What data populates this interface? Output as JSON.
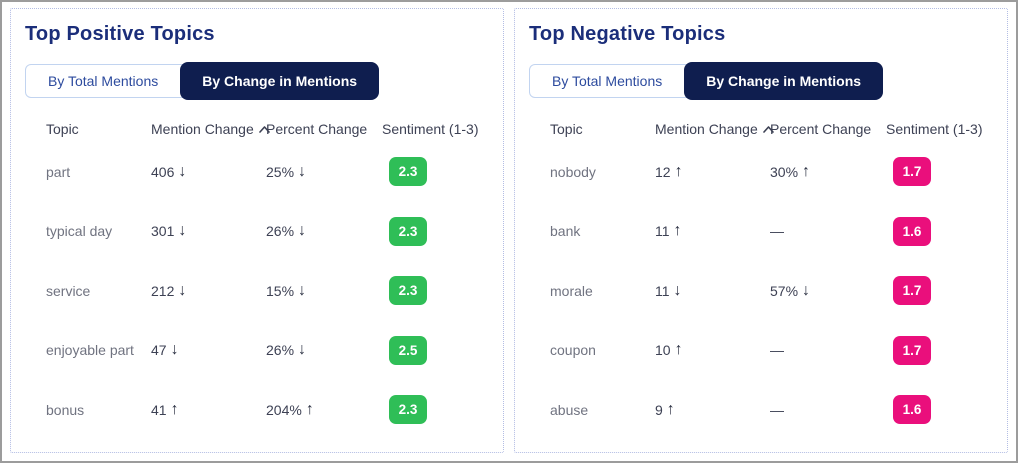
{
  "icons": {
    "up": "↑",
    "down": "↓",
    "sort_direction": "asc"
  },
  "panels": [
    {
      "title": "Top Positive Topics",
      "tabs": [
        {
          "label": "By Total Mentions",
          "active": false
        },
        {
          "label": "By Change in Mentions",
          "active": true
        }
      ],
      "columns": {
        "topic": "Topic",
        "mention_change": "Mention Change",
        "percent_change": "Percent Change",
        "sentiment": "Sentiment (1-3)"
      },
      "badge_color": "#2fbe57",
      "rows": [
        {
          "topic": "part",
          "mention_change": "406",
          "mention_dir": "down",
          "percent_change": "25%",
          "percent_dir": "down",
          "sentiment": "2.3"
        },
        {
          "topic": "typical day",
          "mention_change": "301",
          "mention_dir": "down",
          "percent_change": "26%",
          "percent_dir": "down",
          "sentiment": "2.3"
        },
        {
          "topic": "service",
          "mention_change": "212",
          "mention_dir": "down",
          "percent_change": "15%",
          "percent_dir": "down",
          "sentiment": "2.3"
        },
        {
          "topic": "enjoyable part",
          "mention_change": "47",
          "mention_dir": "down",
          "percent_change": "26%",
          "percent_dir": "down",
          "sentiment": "2.5"
        },
        {
          "topic": "bonus",
          "mention_change": "41",
          "mention_dir": "up",
          "percent_change": "204%",
          "percent_dir": "up",
          "sentiment": "2.3"
        }
      ]
    },
    {
      "title": "Top Negative Topics",
      "tabs": [
        {
          "label": "By Total Mentions",
          "active": false
        },
        {
          "label": "By Change in Mentions",
          "active": true
        }
      ],
      "columns": {
        "topic": "Topic",
        "mention_change": "Mention Change",
        "percent_change": "Percent Change",
        "sentiment": "Sentiment (1-3)"
      },
      "badge_color": "#ea0f7c",
      "rows": [
        {
          "topic": "nobody",
          "mention_change": "12",
          "mention_dir": "up",
          "percent_change": "30%",
          "percent_dir": "up",
          "sentiment": "1.7"
        },
        {
          "topic": "bank",
          "mention_change": "11",
          "mention_dir": "up",
          "percent_change": "—",
          "percent_dir": null,
          "sentiment": "1.6"
        },
        {
          "topic": "morale",
          "mention_change": "11",
          "mention_dir": "down",
          "percent_change": "57%",
          "percent_dir": "down",
          "sentiment": "1.7"
        },
        {
          "topic": "coupon",
          "mention_change": "10",
          "mention_dir": "up",
          "percent_change": "—",
          "percent_dir": null,
          "sentiment": "1.7"
        },
        {
          "topic": "abuse",
          "mention_change": "9",
          "mention_dir": "up",
          "percent_change": "—",
          "percent_dir": null,
          "sentiment": "1.6"
        }
      ]
    }
  ]
}
